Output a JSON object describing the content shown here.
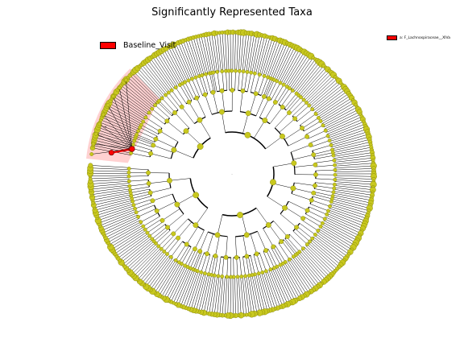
{
  "title": "Significantly Represented Taxa",
  "legend": {
    "label": "Baseline_Visit",
    "color": "#ff0000"
  },
  "side_legend": {
    "label": "a: F_Lachnospiraceae__XIVa",
    "color": "#ff0000"
  },
  "colors": {
    "node_fill": "#c8c81f",
    "node_stroke": "#7a7a00",
    "highlight": "#ff0000",
    "highlight_wedge": "#ff9999",
    "edge": "#000000"
  },
  "tree": {
    "root_label": ".",
    "highlighted_clade": "a",
    "highlighted_clade_marker": "a"
  }
}
